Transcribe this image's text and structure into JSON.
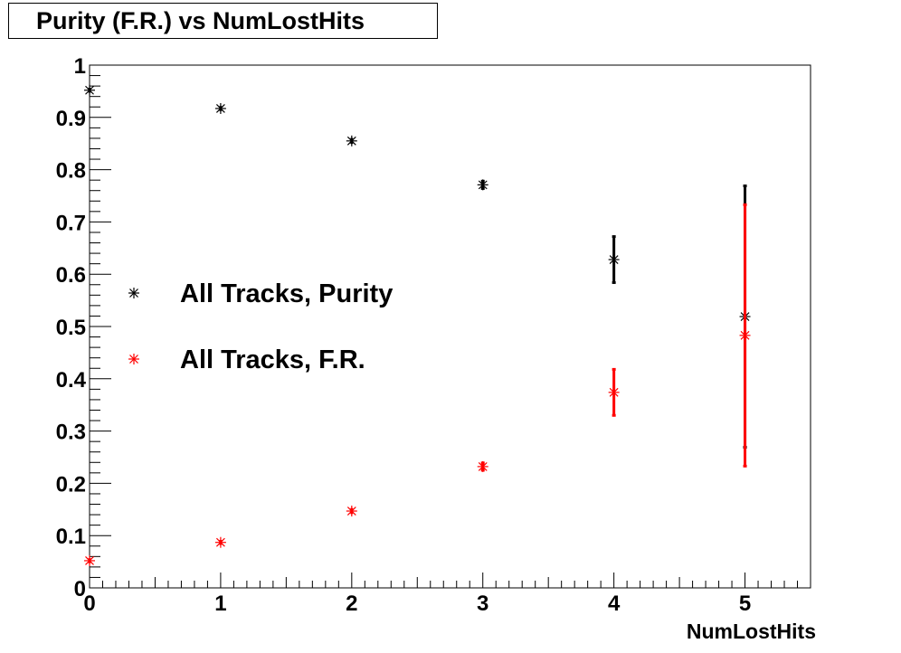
{
  "chart_data": {
    "type": "scatter",
    "title": "Purity (F.R.) vs NumLostHits",
    "xlabel": "NumLostHits",
    "ylabel": "",
    "xlim": [
      0,
      5.5
    ],
    "ylim": [
      0,
      1
    ],
    "xticks": [
      "0",
      "1",
      "2",
      "3",
      "4",
      "5"
    ],
    "yticks": [
      "0",
      "0.1",
      "0.2",
      "0.3",
      "0.4",
      "0.5",
      "0.6",
      "0.7",
      "0.8",
      "0.9",
      "1"
    ],
    "grid": false,
    "legend_placement": "center-left",
    "series": [
      {
        "name": "All Tracks, Purity",
        "color": "#000000",
        "marker": "asterisk",
        "x": [
          0,
          1,
          2,
          3,
          4,
          5
        ],
        "y": [
          0.952,
          0.917,
          0.855,
          0.771,
          0.628,
          0.519
        ],
        "yerr": [
          0.003,
          0.003,
          0.004,
          0.007,
          0.044,
          0.25
        ]
      },
      {
        "name": "All Tracks, F.R.",
        "color": "#ff0000",
        "marker": "asterisk",
        "x": [
          0,
          1,
          2,
          3,
          4,
          5
        ],
        "y": [
          0.052,
          0.087,
          0.147,
          0.232,
          0.374,
          0.483
        ],
        "yerr": [
          0.003,
          0.003,
          0.004,
          0.007,
          0.044,
          0.25
        ]
      }
    ]
  }
}
